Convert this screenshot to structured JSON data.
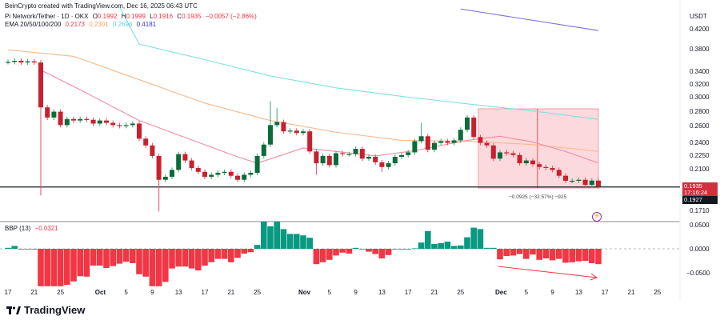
{
  "watermark": "BeinCrypto created with TradingView.com, Dec 16, 2025 06:43 UTC",
  "legend": {
    "symbol": "Pi Network/Tether · 1D · OKX",
    "o_label": "O",
    "o": "0.1992",
    "h_label": "H",
    "h": "0.1999",
    "l_label": "L",
    "l": "0.1916",
    "c_label": "C",
    "c": "0.1935",
    "change": "−0.0057 (−2.86%)",
    "ema_label": "EMA 20/50/100/200",
    "ema20": "0.2173",
    "ema50": "0.2301",
    "ema100": "0.2696",
    "ema200": "0.4181"
  },
  "price_axis": {
    "unit": "USDT",
    "ticks": [
      "0.4200",
      "0.3800",
      "0.3400",
      "0.3200",
      "0.3000",
      "0.2800",
      "0.2600",
      "0.2400",
      "0.2250",
      "0.2100",
      "0.1710"
    ],
    "last_price": "0.1935",
    "countdown": "17:16:24",
    "line_price": "0.1927"
  },
  "measure_label": "−0.0925 (−32.57%) −925",
  "bbp": {
    "label": "BBP (13)",
    "value": "−0.0321",
    "ticks": [
      "0.0500",
      "0.0000",
      "−0.0500"
    ]
  },
  "x_axis": {
    "ticks": [
      {
        "label": "17",
        "day": 0
      },
      {
        "label": "21",
        "day": 4
      },
      {
        "label": "25",
        "day": 8
      },
      {
        "label": "Oct",
        "day": 14,
        "bold": true
      },
      {
        "label": "5",
        "day": 18
      },
      {
        "label": "9",
        "day": 22
      },
      {
        "label": "13",
        "day": 26
      },
      {
        "label": "17",
        "day": 30
      },
      {
        "label": "21",
        "day": 34
      },
      {
        "label": "25",
        "day": 38
      },
      {
        "label": "Nov",
        "day": 45,
        "bold": true
      },
      {
        "label": "5",
        "day": 49
      },
      {
        "label": "9",
        "day": 53
      },
      {
        "label": "13",
        "day": 57
      },
      {
        "label": "17",
        "day": 61
      },
      {
        "label": "21",
        "day": 65
      },
      {
        "label": "25",
        "day": 69
      },
      {
        "label": "Dec",
        "day": 75,
        "bold": true
      },
      {
        "label": "5",
        "day": 79
      },
      {
        "label": "9",
        "day": 83
      },
      {
        "label": "13",
        "day": 87
      },
      {
        "label": "17",
        "day": 91
      },
      {
        "label": "21",
        "day": 95
      },
      {
        "label": "25",
        "day": 99
      }
    ]
  },
  "colors": {
    "up": "#089981",
    "down": "#f23645",
    "candle_up": "#0b6b3a",
    "candle_down": "#c8202f",
    "ema20": "#f28ca0",
    "ema50": "#f9b98a",
    "ema100": "#7fe0e0",
    "ema200": "#7b6ee0",
    "range_fill": "#fcd9dc"
  },
  "branding": {
    "logo_text": "TradingView"
  },
  "chart_data": [
    {
      "type": "candlestick",
      "title": "Pi Network/Tether · 1D · OKX",
      "x_start": "2025-09-17",
      "scale": "log",
      "ylim": [
        0.165,
        0.48
      ],
      "close": [
        0.358,
        0.36,
        0.357,
        0.359,
        0.357,
        0.286,
        0.272,
        0.28,
        0.262,
        0.27,
        0.268,
        0.27,
        0.269,
        0.264,
        0.268,
        0.265,
        0.262,
        0.261,
        0.262,
        0.264,
        0.245,
        0.237,
        0.225,
        0.2,
        0.203,
        0.21,
        0.227,
        0.22,
        0.212,
        0.208,
        0.203,
        0.205,
        0.207,
        0.208,
        0.204,
        0.2,
        0.205,
        0.207,
        0.225,
        0.238,
        0.262,
        0.266,
        0.254,
        0.255,
        0.252,
        0.254,
        0.23,
        0.217,
        0.225,
        0.215,
        0.228,
        0.227,
        0.227,
        0.233,
        0.222,
        0.224,
        0.218,
        0.213,
        0.217,
        0.224,
        0.226,
        0.229,
        0.242,
        0.248,
        0.232,
        0.24,
        0.242,
        0.24,
        0.243,
        0.256,
        0.272,
        0.247,
        0.24,
        0.237,
        0.222,
        0.229,
        0.228,
        0.226,
        0.217,
        0.22,
        0.216,
        0.213,
        0.212,
        0.21,
        0.204,
        0.199,
        0.199,
        0.2,
        0.195,
        0.1992,
        0.1935
      ],
      "low_wicks": {
        "5": 0.185,
        "23": 0.171,
        "47": 0.205,
        "57": 0.208
      },
      "high_wicks": {
        "40": 0.295,
        "41": 0.285,
        "63": 0.265
      },
      "ema20": [
        [
          5,
          0.344
        ],
        [
          11,
          0.312
        ],
        [
          20,
          0.268
        ],
        [
          35,
          0.224
        ],
        [
          38,
          0.217
        ],
        [
          45,
          0.234
        ],
        [
          50,
          0.23
        ],
        [
          56,
          0.225
        ],
        [
          62,
          0.231
        ],
        [
          70,
          0.243
        ],
        [
          75,
          0.248
        ],
        [
          80,
          0.241
        ],
        [
          85,
          0.23
        ],
        [
          90,
          0.2173
        ]
      ],
      "ema50": [
        [
          0,
          0.38
        ],
        [
          10,
          0.368
        ],
        [
          20,
          0.328
        ],
        [
          30,
          0.292
        ],
        [
          40,
          0.268
        ],
        [
          50,
          0.253
        ],
        [
          60,
          0.243
        ],
        [
          70,
          0.242
        ],
        [
          80,
          0.238
        ],
        [
          90,
          0.2301
        ]
      ],
      "ema100": [
        [
          17,
          0.47
        ],
        [
          20,
          0.391
        ],
        [
          30,
          0.362
        ],
        [
          40,
          0.334
        ],
        [
          50,
          0.315
        ],
        [
          60,
          0.302
        ],
        [
          70,
          0.291
        ],
        [
          80,
          0.281
        ],
        [
          90,
          0.2696
        ]
      ],
      "ema200": [
        [
          69,
          0.465
        ],
        [
          90,
          0.4181
        ]
      ],
      "horizontal_line": 0.193,
      "range_box": {
        "from_day": 71.7,
        "to_day": 90,
        "top": 0.284,
        "bottom": 0.192,
        "mid_day": 80.7
      }
    },
    {
      "type": "bar",
      "title": "BBP (13)",
      "ylim": [
        -0.078,
        0.057
      ],
      "values": [
        0.002,
        0.006,
        0,
        -0.001,
        0,
        -0.078,
        -0.078,
        -0.078,
        -0.078,
        -0.075,
        -0.068,
        -0.057,
        -0.058,
        -0.035,
        -0.035,
        -0.04,
        -0.036,
        -0.031,
        -0.027,
        -0.03,
        -0.053,
        -0.058,
        -0.078,
        -0.078,
        -0.069,
        -0.041,
        -0.037,
        -0.037,
        -0.041,
        -0.045,
        -0.035,
        -0.028,
        -0.021,
        -0.021,
        -0.028,
        -0.019,
        -0.01,
        -0.007,
        0.008,
        0.057,
        0.047,
        0.057,
        0.041,
        0.031,
        0.031,
        0.028,
        0.023,
        -0.032,
        -0.028,
        -0.023,
        -0.014,
        -0.008,
        -0.01,
        0.002,
        0,
        -0.006,
        -0.011,
        -0.02,
        -0.013,
        0,
        0,
        0,
        0.001,
        0.013,
        0.037,
        0.01,
        0.012,
        0.015,
        0.006,
        0.007,
        0.024,
        0.044,
        0.041,
        0.002,
        0.002,
        -0.022,
        -0.015,
        -0.014,
        -0.011,
        -0.021,
        -0.012,
        -0.023,
        -0.02,
        -0.024,
        -0.021,
        -0.029,
        -0.028,
        -0.026,
        -0.025,
        -0.03,
        -0.032
      ]
    }
  ]
}
